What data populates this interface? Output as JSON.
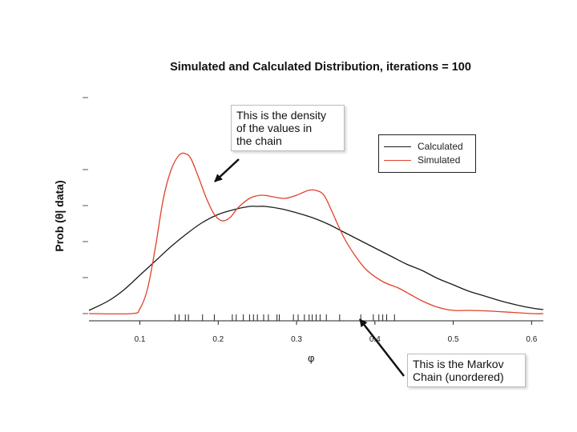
{
  "chart_data": {
    "type": "line",
    "title": "Simulated and Calculated Distribution, iterations =  100",
    "xlabel": "φ",
    "ylabel": "Prob (θ| data)",
    "xlim": [
      0.035,
      0.615
    ],
    "ylim": [
      0,
      1.0
    ],
    "x_ticks": [
      0.1,
      0.2,
      0.3,
      0.4,
      0.5,
      0.6
    ],
    "x_tick_labels": [
      "0.1",
      "0.2",
      "0.3",
      "0.4",
      "0.5",
      "0.6"
    ],
    "y_ticks": [
      0.0,
      0.2,
      0.4,
      0.6,
      0.8,
      1.0
    ],
    "series": [
      {
        "name": "Calculated",
        "color": "#1a1a1a",
        "x": [
          0.035,
          0.06,
          0.08,
          0.1,
          0.12,
          0.14,
          0.16,
          0.18,
          0.2,
          0.22,
          0.24,
          0.25,
          0.26,
          0.28,
          0.3,
          0.32,
          0.34,
          0.36,
          0.38,
          0.4,
          0.42,
          0.44,
          0.46,
          0.48,
          0.5,
          0.52,
          0.54,
          0.56,
          0.58,
          0.6,
          0.615
        ],
        "y": [
          0.02,
          0.08,
          0.15,
          0.24,
          0.33,
          0.42,
          0.5,
          0.57,
          0.62,
          0.65,
          0.67,
          0.67,
          0.67,
          0.655,
          0.63,
          0.6,
          0.56,
          0.51,
          0.46,
          0.41,
          0.36,
          0.31,
          0.27,
          0.22,
          0.18,
          0.14,
          0.11,
          0.08,
          0.055,
          0.035,
          0.025
        ]
      },
      {
        "name": "Simulated",
        "color": "#e0412a",
        "x": [
          0.035,
          0.09,
          0.1,
          0.11,
          0.12,
          0.13,
          0.14,
          0.15,
          0.158,
          0.165,
          0.175,
          0.185,
          0.195,
          0.205,
          0.215,
          0.225,
          0.24,
          0.255,
          0.27,
          0.285,
          0.3,
          0.315,
          0.325,
          0.335,
          0.345,
          0.36,
          0.375,
          0.39,
          0.41,
          0.43,
          0.445,
          0.46,
          0.48,
          0.5,
          0.52,
          0.55,
          0.6,
          0.615
        ],
        "y": [
          0.0,
          0.0,
          0.03,
          0.16,
          0.42,
          0.72,
          0.9,
          0.99,
          1.0,
          0.97,
          0.85,
          0.72,
          0.62,
          0.58,
          0.6,
          0.66,
          0.72,
          0.74,
          0.73,
          0.72,
          0.74,
          0.77,
          0.77,
          0.74,
          0.64,
          0.48,
          0.36,
          0.27,
          0.2,
          0.16,
          0.12,
          0.08,
          0.04,
          0.02,
          0.02,
          0.015,
          0.0,
          0.0
        ]
      }
    ],
    "rug": [
      0.145,
      0.15,
      0.158,
      0.162,
      0.18,
      0.195,
      0.218,
      0.223,
      0.232,
      0.24,
      0.245,
      0.25,
      0.258,
      0.264,
      0.275,
      0.278,
      0.296,
      0.302,
      0.31,
      0.316,
      0.32,
      0.325,
      0.33,
      0.338,
      0.355,
      0.382,
      0.398,
      0.405,
      0.41,
      0.415,
      0.425
    ],
    "legend": [
      "Calculated",
      "Simulated"
    ],
    "legend_position": "top-right"
  },
  "annotations": {
    "density_lines": [
      "This is the density",
      "of the values in",
      "the chain"
    ],
    "markov_lines": [
      "This is the Markov",
      "Chain (unordered)"
    ]
  }
}
